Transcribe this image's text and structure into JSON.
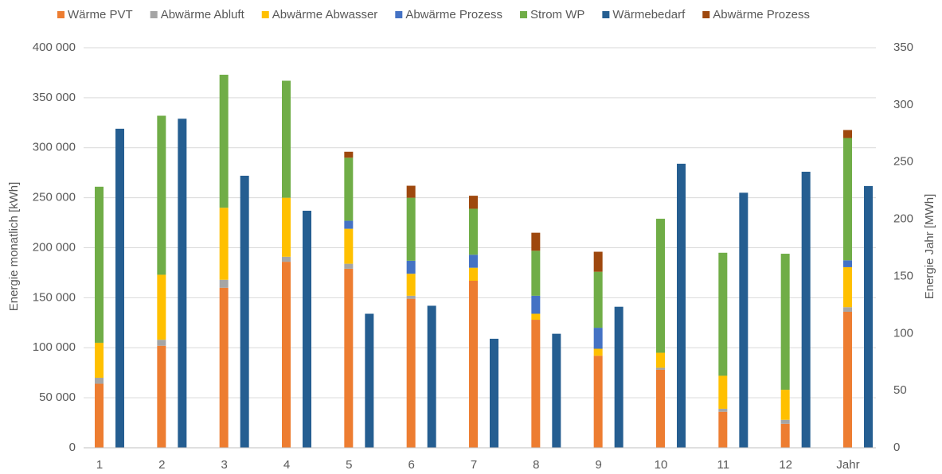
{
  "chart_data": {
    "type": "bar",
    "stacked": true,
    "y_label": "Energie monatlich [kWh]",
    "y2_label": "Energie Jahr [MWh]",
    "categories": [
      "1",
      "2",
      "3",
      "4",
      "5",
      "6",
      "7",
      "8",
      "9",
      "10",
      "11",
      "12",
      "Jahr"
    ],
    "series": [
      {
        "name": "Wärme PVT",
        "color": "#ed7d31",
        "stack": "A",
        "values": [
          64000,
          102000,
          160000,
          186000,
          179000,
          149000,
          167000,
          128000,
          92000,
          78000,
          36000,
          24000,
          null
        ],
        "y2_values": [
          null,
          null,
          null,
          null,
          null,
          null,
          null,
          null,
          null,
          null,
          null,
          null,
          119
        ]
      },
      {
        "name": "Abwärme Abluft",
        "color": "#a5a5a5",
        "stack": "A",
        "values": [
          6000,
          6000,
          8000,
          5000,
          5000,
          3000,
          0,
          0,
          0,
          2000,
          3000,
          4000,
          null
        ],
        "y2_values": [
          null,
          null,
          null,
          null,
          null,
          null,
          null,
          null,
          null,
          null,
          null,
          null,
          4
        ]
      },
      {
        "name": "Abwärme Abwasser",
        "color": "#ffc000",
        "stack": "A",
        "values": [
          35000,
          65000,
          72000,
          59000,
          35000,
          22000,
          13000,
          6000,
          7000,
          15000,
          33000,
          30000,
          null
        ],
        "y2_values": [
          null,
          null,
          null,
          null,
          null,
          null,
          null,
          null,
          null,
          null,
          null,
          null,
          35
        ]
      },
      {
        "name": "Abwärme Prozess",
        "color": "#4472c4",
        "stack": "A",
        "values": [
          0,
          0,
          0,
          0,
          8000,
          13000,
          13000,
          18000,
          21000,
          0,
          0,
          0,
          null
        ],
        "y2_values": [
          null,
          null,
          null,
          null,
          null,
          null,
          null,
          null,
          null,
          null,
          null,
          null,
          6
        ]
      },
      {
        "name": "Strom WP",
        "color": "#70ad47",
        "stack": "A",
        "values": [
          156000,
          159000,
          133000,
          117000,
          63000,
          63000,
          46000,
          45000,
          56000,
          134000,
          123000,
          136000,
          null
        ],
        "y2_values": [
          null,
          null,
          null,
          null,
          null,
          null,
          null,
          null,
          null,
          null,
          null,
          null,
          107
        ]
      },
      {
        "name": "Wärmebedarf",
        "color": "#255e91",
        "stack": "B",
        "values": [
          319000,
          329000,
          272000,
          237000,
          134000,
          142000,
          109000,
          114000,
          141000,
          284000,
          255000,
          276000,
          null
        ],
        "y2_values": [
          null,
          null,
          null,
          null,
          null,
          null,
          null,
          null,
          null,
          null,
          null,
          null,
          229
        ]
      },
      {
        "name": "Abwärme Prozess",
        "color": "#9e480e",
        "stack": "A",
        "values": [
          0,
          0,
          0,
          0,
          6000,
          12000,
          13000,
          18000,
          20000,
          0,
          0,
          0,
          null
        ],
        "y2_values": [
          null,
          null,
          null,
          null,
          null,
          null,
          null,
          null,
          null,
          null,
          null,
          null,
          7
        ]
      }
    ],
    "ylim": [
      0,
      400000
    ],
    "yticks": [
      0,
      {
        "value": 50000,
        "label": "50 000"
      },
      {
        "value": 100000,
        "label": "100 000"
      },
      {
        "value": 150000,
        "label": "150 000"
      },
      {
        "value": 200000,
        "label": "200 000"
      },
      {
        "value": 250000,
        "label": "250 000"
      },
      {
        "value": 300000,
        "label": "300 000"
      },
      {
        "value": 350000,
        "label": "350 000"
      },
      {
        "value": 400000,
        "label": "400 000"
      }
    ],
    "y2lim": [
      0,
      350
    ],
    "y2ticks": [
      0,
      50,
      100,
      150,
      200,
      250,
      300,
      350
    ],
    "grid": true,
    "legend": "top"
  }
}
